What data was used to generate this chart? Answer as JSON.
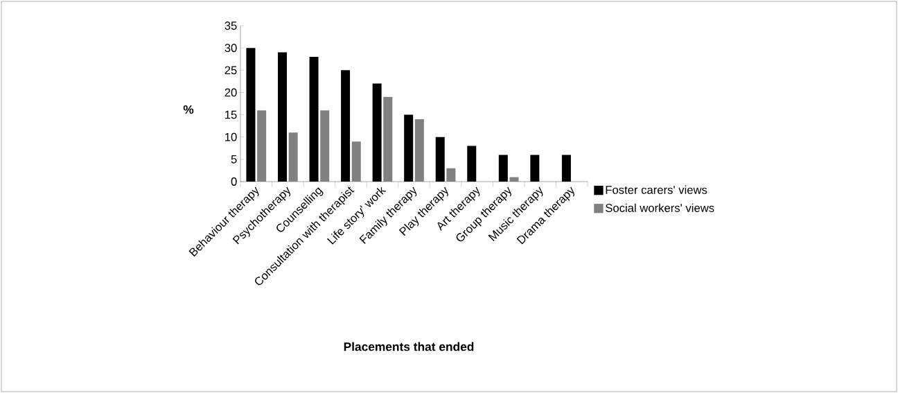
{
  "chart_data": {
    "type": "bar",
    "xlabel": "Placements that ended",
    "ylabel": "%",
    "categories": [
      "Behaviour therapy",
      "Psychotherapy",
      "Counselling",
      "Consultation with therapist",
      "Life story' work",
      "Family therapy",
      "Play therapy",
      "Art therapy",
      "Group therapy",
      "Music therapy",
      "Drama therapy"
    ],
    "series": [
      {
        "name": "Foster carers' views",
        "color": "#000000",
        "values": [
          30,
          29,
          28,
          25,
          22,
          15,
          10,
          8,
          6,
          6,
          6
        ]
      },
      {
        "name": "Social workers' views",
        "color": "#808080",
        "values": [
          16,
          11,
          16,
          9,
          19,
          14,
          3,
          0,
          1,
          0,
          0
        ]
      }
    ],
    "ylim": [
      0,
      35
    ],
    "yticks": [
      0,
      5,
      10,
      15,
      20,
      25,
      30,
      35
    ],
    "legend": "right"
  }
}
